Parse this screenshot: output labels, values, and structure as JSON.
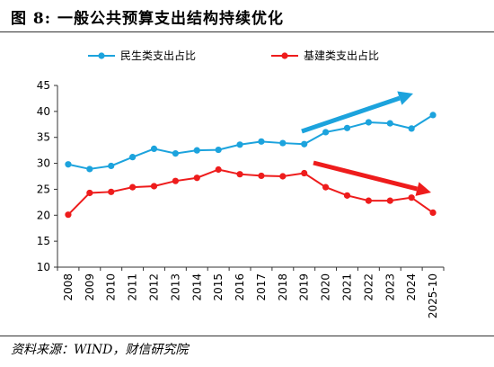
{
  "figure": {
    "title": "图 8:  一般公共预算支出结构持续优化",
    "source": "资料来源：WIND，财信研究院"
  },
  "chart_data": {
    "type": "line",
    "categories": [
      "2008",
      "2009",
      "2010",
      "2011",
      "2012",
      "2013",
      "2014",
      "2015",
      "2016",
      "2017",
      "2018",
      "2019",
      "2020",
      "2021",
      "2022",
      "2023",
      "2024",
      "2025-10"
    ],
    "series": [
      {
        "name": "民生类支出占比",
        "color": "#1ca3dd",
        "values": [
          29.8,
          28.9,
          29.5,
          31.2,
          32.8,
          31.9,
          32.5,
          32.6,
          33.6,
          34.2,
          33.9,
          33.7,
          36.0,
          36.8,
          37.9,
          37.7,
          36.7,
          39.3
        ]
      },
      {
        "name": "基建类支出占比",
        "color": "#ee1c1c",
        "values": [
          20.1,
          24.3,
          24.5,
          25.4,
          25.6,
          26.6,
          27.2,
          28.8,
          27.9,
          27.6,
          27.5,
          28.1,
          25.4,
          23.8,
          22.8,
          22.8,
          23.4,
          20.5
        ]
      }
    ],
    "ylim": [
      10,
      45
    ],
    "yticks": [
      10,
      15,
      20,
      25,
      30,
      35,
      40,
      45
    ],
    "grid": false,
    "legend_position": "top",
    "annotations": [
      {
        "type": "trend-arrow",
        "color": "#1ca3dd",
        "direction": "up"
      },
      {
        "type": "trend-arrow",
        "color": "#ee1c1c",
        "direction": "down"
      }
    ]
  }
}
